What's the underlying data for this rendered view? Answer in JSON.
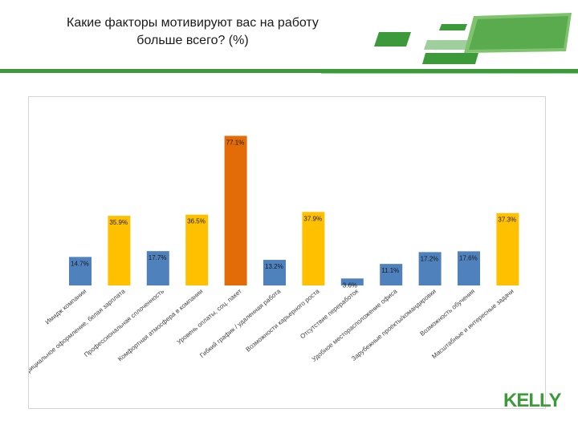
{
  "title": {
    "line1": "Какие факторы мотивируют вас на работу",
    "line2": "больше всего? (%)"
  },
  "brand": {
    "name": "KELLY",
    "color": "#3d9a3a"
  },
  "colors": {
    "blue": "#4f81bd",
    "yellow": "#ffc000",
    "orange": "#e36c09",
    "green": "#3d9a3a"
  },
  "chart_data": {
    "type": "bar",
    "title": "",
    "xlabel": "",
    "ylabel": "",
    "ylim": [
      0,
      80
    ],
    "grid": false,
    "legend": "none",
    "categories": [
      "Имидж компании",
      "Официальное оформление, белая зарплата",
      "Профессиональная сплоченность",
      "Комфортная атмосфера в компании",
      "Уровень оплаты, соц. пакет",
      "Гибкий график / удаленная работа",
      "Возможности карьерного роста",
      "Отсутствие переработок",
      "Удобное месторасположение офиса",
      "Зарубежные проекты/командировки",
      "Возможность обучения",
      "Масштабные и интересные задачи"
    ],
    "values": [
      14.7,
      35.9,
      17.7,
      36.5,
      77.1,
      13.2,
      37.9,
      3.6,
      11.1,
      17.2,
      17.6,
      37.3
    ],
    "value_labels": [
      "14.7%",
      "35.9%",
      "17.7%",
      "36.5%",
      "77.1%",
      "13.2%",
      "37.9%",
      "3.6%",
      "11.1%",
      "17.2%",
      "17.6%",
      "37.3%"
    ],
    "bar_colors": [
      "#4f81bd",
      "#ffc000",
      "#4f81bd",
      "#ffc000",
      "#e36c09",
      "#4f81bd",
      "#ffc000",
      "#4f81bd",
      "#4f81bd",
      "#4f81bd",
      "#4f81bd",
      "#ffc000"
    ]
  }
}
